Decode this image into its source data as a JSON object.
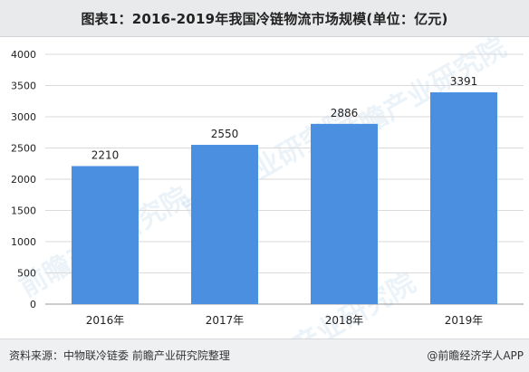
{
  "header": {
    "title": "图表1：2016-2019年我国冷链物流市场规模(单位：亿元)"
  },
  "footer": {
    "source": "资料来源：中物联冷链委 前瞻产业研究院整理",
    "brand": "@前瞻经济学人APP"
  },
  "watermark": {
    "text": "前瞻产业研究院"
  },
  "colors": {
    "bar": "#4a8fe0",
    "grid": "#dadada",
    "axis": "#9a9a9a",
    "text": "#222222"
  },
  "chart_data": {
    "type": "bar",
    "title": "图表1：2016-2019年我国冷链物流市场规模(单位：亿元)",
    "categories": [
      "2016年",
      "2017年",
      "2018年",
      "2019年"
    ],
    "values": [
      2210,
      2550,
      2886,
      3391
    ],
    "xlabel": "",
    "ylabel": "",
    "ylim": [
      0,
      4000
    ],
    "yticks": [
      0,
      500,
      1000,
      1500,
      2000,
      2500,
      3000,
      3500,
      4000
    ],
    "grid": true,
    "legend": "none",
    "data_labels": true
  }
}
